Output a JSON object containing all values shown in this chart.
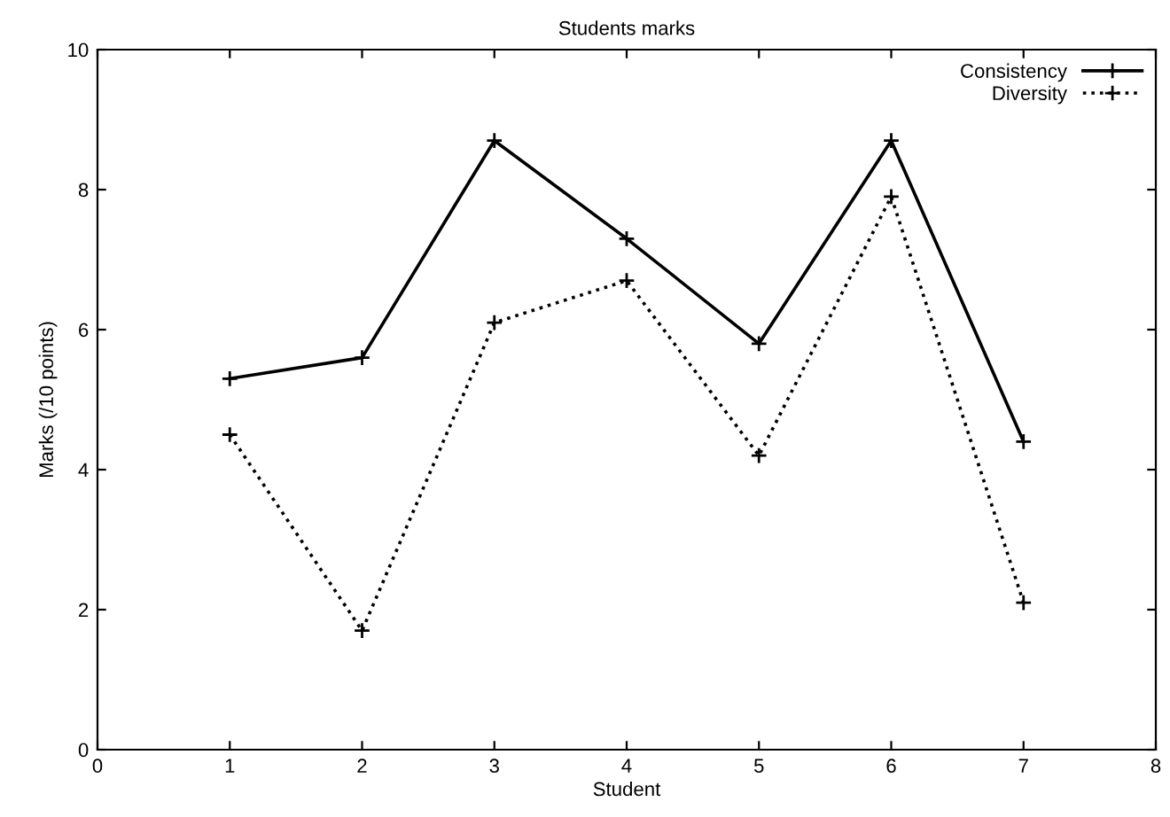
{
  "chart_data": {
    "type": "line",
    "title": "Students marks",
    "xlabel": "Student",
    "ylabel": "Marks (/10 points)",
    "x": [
      1,
      2,
      3,
      4,
      5,
      6,
      7
    ],
    "series": [
      {
        "name": "Consistency",
        "color": "#000000",
        "line_style": "solid",
        "values": [
          5.3,
          5.6,
          8.7,
          7.3,
          5.8,
          8.7,
          4.4
        ]
      },
      {
        "name": "Diversity",
        "color": "#000000",
        "line_style": "dotted",
        "values": [
          4.5,
          1.7,
          6.1,
          6.7,
          4.2,
          7.9,
          2.1
        ]
      }
    ],
    "marker": "cross",
    "xlim": [
      0,
      8
    ],
    "xticks": [
      0,
      1,
      2,
      3,
      4,
      5,
      6,
      7,
      8
    ],
    "ylim": [
      0,
      10
    ],
    "yticks": [
      0,
      2,
      4,
      6,
      8,
      10
    ],
    "grid": false,
    "legend": "top right"
  }
}
